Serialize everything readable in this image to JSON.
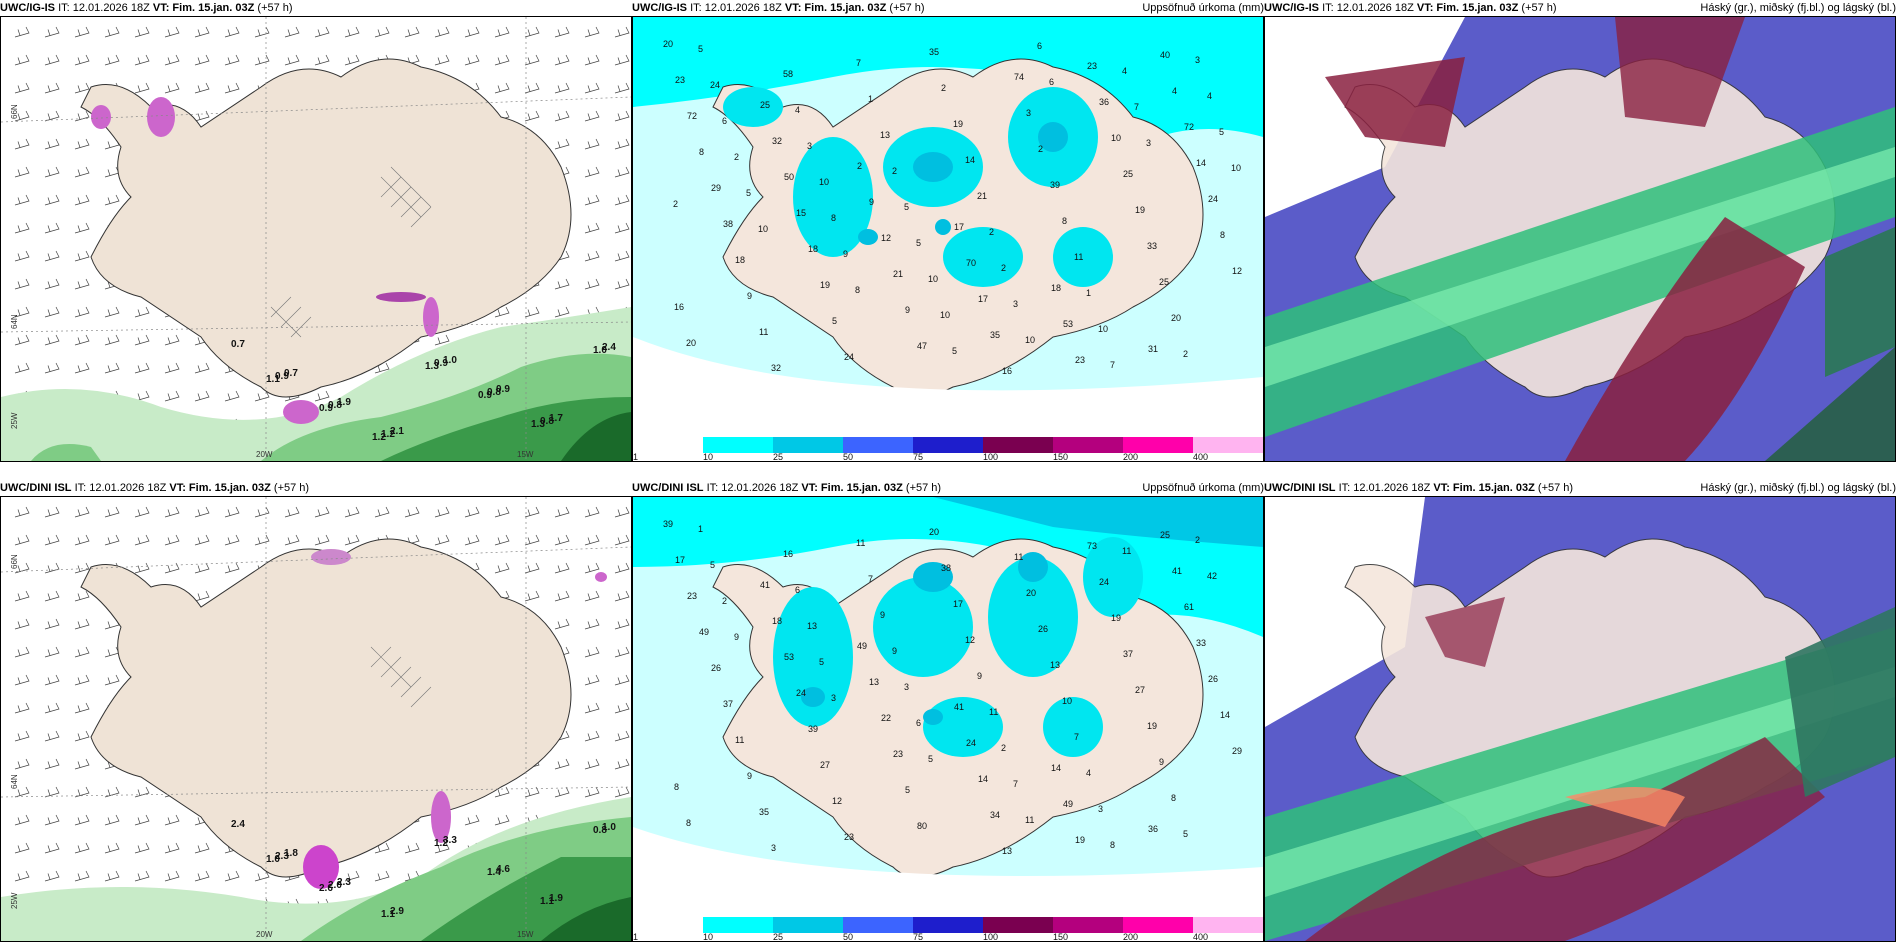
{
  "panels": [
    {
      "model": "UWC/IG-IS",
      "it": "IT: 12.01.2026 18Z",
      "vt": "VT: Fim. 15.jan. 03Z",
      "lead": "(+57 h)",
      "title_right": "",
      "axis": {
        "lat66": "66N",
        "lat64": "64N",
        "lon20": "20W",
        "lon15": "15W",
        "lon25": "25W"
      },
      "labels": [
        "0.7",
        "0.7",
        "1.9",
        "2.1",
        "1.0",
        "0.9",
        "1.7",
        "2.4",
        "0.9",
        "0.8",
        "1.2",
        "0.9",
        "0.8",
        "0.8",
        "1.0",
        "1.1",
        "0.9",
        "1.2",
        "1.3",
        "0.9",
        "1.3"
      ]
    },
    {
      "model": "UWC/IG-IS",
      "it": "IT: 12.01.2026 18Z",
      "vt": "VT: Fim. 15.jan. 03Z",
      "lead": "(+57 h)",
      "title_right": "Uppsöfnuð úrkoma (mm)",
      "labels": [
        "20",
        "25",
        "2",
        "17",
        "18",
        "31",
        "23",
        "32",
        "9",
        "70",
        "53",
        "40",
        "72",
        "50",
        "12",
        "17",
        "23",
        "4",
        "8",
        "15",
        "21",
        "35",
        "23",
        "72",
        "29",
        "18",
        "9",
        "16",
        "36",
        "14",
        "38",
        "19",
        "47",
        "74",
        "10",
        "24",
        "18",
        "5",
        "35",
        "3",
        "25",
        "8",
        "9",
        "24",
        "2",
        "2",
        "19",
        "12",
        "11",
        "7",
        "19",
        "39",
        "33",
        "16",
        "32",
        "1",
        "14",
        "8",
        "25",
        "20",
        "58",
        "13",
        "21",
        "11",
        "20",
        "5",
        "4",
        "2",
        "2",
        "1",
        "2",
        "24",
        "3",
        "5",
        "2",
        "10",
        "3",
        "6",
        "10",
        "5",
        "3",
        "7",
        "4",
        "2",
        "8",
        "10",
        "10",
        "4",
        "5",
        "5",
        "9",
        "10",
        "6",
        "7",
        "10",
        "10",
        "8",
        "5",
        "6",
        "3",
        "2"
      ]
    },
    {
      "model": "UWC/IG-IS",
      "it": "IT: 12.01.2026 18Z",
      "vt": "VT: Fim. 15.jan. 03Z",
      "lead": "(+57 h)",
      "title_right": "Háský (gr.), miðský (fj.bl.) og lágský (bl.)"
    },
    {
      "model": "UWC/DINI ISL",
      "it": "IT: 12.01.2026 18Z",
      "vt": "VT: Fim. 15.jan. 03Z",
      "lead": "(+57 h)",
      "title_right": "",
      "axis": {
        "lat66": "66N",
        "lat64": "64N",
        "lon20": "20W",
        "lon15": "15W",
        "lon25": "25W"
      },
      "labels": [
        "2.4",
        "1.8",
        "2.3",
        "2.9",
        "3.3",
        "4.6",
        "1.9",
        "1.0",
        "2.3",
        "2.0",
        "1.1",
        "1.2",
        "1.4",
        "1.1",
        "0.8",
        "1.0",
        "2.6"
      ]
    },
    {
      "model": "UWC/DINI ISL",
      "it": "IT: 12.01.2026 18Z",
      "vt": "VT: Fim. 15.jan. 03Z",
      "lead": "(+57 h)",
      "title_right": "Uppsöfnuð úrkoma (mm)",
      "labels": [
        "39",
        "41",
        "49",
        "41",
        "14",
        "36",
        "17",
        "18",
        "13",
        "24",
        "49",
        "25",
        "23",
        "53",
        "22",
        "14",
        "19",
        "41",
        "49",
        "24",
        "23",
        "34",
        "73",
        "61",
        "26",
        "39",
        "5",
        "13",
        "24",
        "33",
        "37",
        "27",
        "80",
        "11",
        "19",
        "26",
        "11",
        "12",
        "20",
        "20",
        "37",
        "14",
        "9",
        "23",
        "38",
        "26",
        "27",
        "29",
        "35",
        "11",
        "17",
        "13",
        "19",
        "8",
        "3",
        "7",
        "12",
        "10",
        "9",
        "8",
        "16",
        "9",
        "9",
        "7",
        "8",
        "1",
        "6",
        "9",
        "11",
        "4",
        "5",
        "5",
        "13",
        "3",
        "2",
        "3",
        "2",
        "2",
        "5",
        "6",
        "7",
        "8",
        "42",
        "9",
        "3",
        "5",
        "11",
        "11"
      ]
    },
    {
      "model": "UWC/DINI ISL",
      "it": "IT: 12.01.2026 18Z",
      "vt": "VT: Fim. 15.jan. 03Z",
      "lead": "(+57 h)",
      "title_right": "Háský (gr.), miðský (fj.bl.) og lágský (bl.)"
    }
  ],
  "legend": {
    "ticks": [
      "1",
      "10",
      "25",
      "50",
      "75",
      "100",
      "150",
      "200",
      "400"
    ],
    "colors": [
      "#ffffff",
      "#00ffff",
      "#00c8e6",
      "#3c64ff",
      "#1e1ecc",
      "#7a0050",
      "#b4007e",
      "#ff00aa",
      "#ffb4f0"
    ]
  }
}
